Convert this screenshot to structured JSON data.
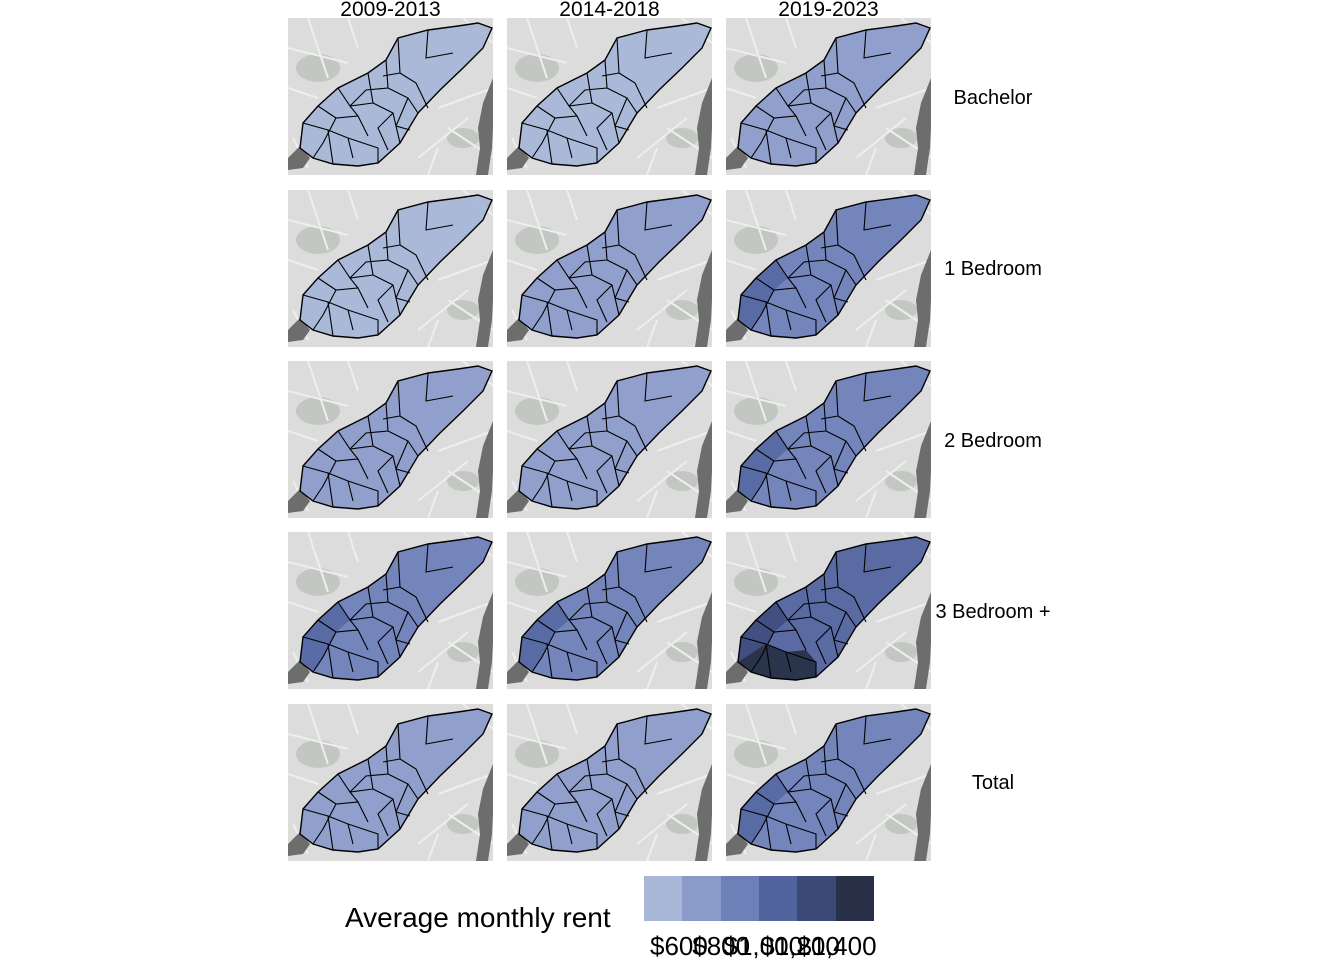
{
  "columns": [
    "2009-2013",
    "2014-2018",
    "2019-2023"
  ],
  "rows": [
    "Bachelor",
    "1 Bedroom",
    "2 Bedroom",
    "3 Bedroom +",
    "Total"
  ],
  "legend": {
    "title": "Average monthly rent",
    "colors": [
      "#a8b6d8",
      "#8b9bc9",
      "#6e80b8",
      "#52649f",
      "#3b4a77",
      "#293149"
    ],
    "ticks": [
      {
        "label": "$600",
        "value": 600
      },
      {
        "label": "$800",
        "value": 800
      },
      {
        "label": "$1,000",
        "value": 1000
      },
      {
        "label": "$1,200",
        "value": 1200
      },
      {
        "label": "$1,400",
        "value": 1400
      }
    ]
  },
  "shading_levels": {
    "Bachelor": [
      0,
      0,
      1
    ],
    "1 Bedroom": [
      0,
      1,
      2
    ],
    "2 Bedroom": [
      1,
      1,
      2
    ],
    "3 Bedroom +": [
      2,
      2,
      3
    ],
    "Total": [
      1,
      1,
      2
    ]
  },
  "basemap_colors": {
    "land": "#dcdcdc",
    "water": "#6d6d6d",
    "park": "#c2c7c2",
    "street": "#eeeeee"
  }
}
